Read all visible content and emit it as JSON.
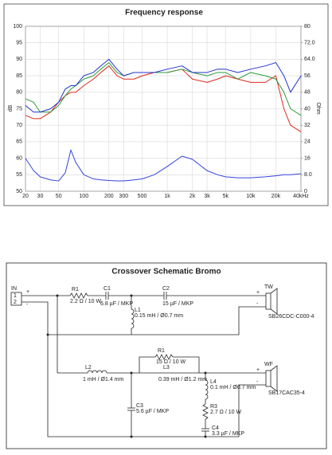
{
  "chart_data": {
    "type": "line",
    "title": "Frequency response",
    "ylabel": "dB",
    "y2label": "Ohm",
    "x": [
      20,
      25,
      30,
      40,
      50,
      60,
      70,
      80,
      100,
      130,
      160,
      200,
      250,
      300,
      400,
      500,
      700,
      1000,
      1500,
      2000,
      3000,
      4000,
      5000,
      7000,
      10000,
      15000,
      20000,
      25000,
      30000,
      40000
    ],
    "series": [
      {
        "name": "red",
        "color": "#e0281e",
        "values": [
          73,
          72,
          72,
          74,
          77,
          79,
          80,
          80,
          82,
          84,
          86,
          88,
          85,
          84,
          84,
          85,
          86,
          86,
          87,
          84,
          83,
          84,
          85,
          84,
          83,
          83,
          85,
          75,
          70,
          68
        ]
      },
      {
        "name": "green",
        "color": "#2e9a3a",
        "values": [
          78,
          77,
          74,
          74,
          76,
          79,
          81,
          82,
          84,
          85,
          87,
          89,
          86,
          85,
          86,
          86,
          86,
          86,
          87,
          86,
          85,
          86,
          86,
          84,
          86,
          85,
          84,
          80,
          75,
          73
        ]
      },
      {
        "name": "blue",
        "color": "#2233cc",
        "values": [
          76,
          74,
          74,
          75,
          77,
          81,
          82,
          82,
          85,
          86,
          88,
          90,
          87,
          85,
          86,
          86,
          86,
          87,
          88,
          86,
          86,
          87,
          87,
          86,
          87,
          88,
          89,
          85,
          80,
          85
        ]
      },
      {
        "name": "impedance",
        "color": "#3344dd",
        "axis": "y2",
        "values": [
          16,
          10,
          7,
          5.5,
          5,
          9,
          20,
          14,
          8,
          6,
          5.5,
          5.2,
          5,
          5,
          5.5,
          6,
          8,
          12,
          17,
          15.5,
          10,
          8,
          7,
          6.5,
          6.5,
          7,
          7.5,
          8,
          8,
          8.5
        ]
      }
    ],
    "xlim": [
      20,
      40000
    ],
    "log_x": true,
    "xticks": [
      20,
      30,
      50,
      100,
      200,
      300,
      500,
      {
        "value": 1000,
        "label": "1k"
      },
      {
        "value": 2000,
        "label": "2k"
      },
      {
        "value": 3000,
        "label": "3k"
      },
      {
        "value": 5000,
        "label": "5k"
      },
      {
        "value": 10000,
        "label": "10k"
      },
      {
        "value": 20000,
        "label": "20k"
      },
      {
        "value": 40000,
        "label": "40kHz"
      }
    ],
    "ylim": [
      50,
      100
    ],
    "yticks": [
      50,
      55,
      60,
      65,
      70,
      75,
      80,
      85,
      90,
      95,
      100
    ],
    "y2lim": [
      0,
      80
    ],
    "y2ticks": [
      0,
      {
        "value": 8,
        "label": "8.0"
      },
      16,
      24,
      32,
      40,
      48,
      56,
      {
        "value": 64,
        "label": "64.0"
      },
      {
        "value": 72,
        "label": "72.0"
      },
      80
    ],
    "grid": true
  },
  "schematic": {
    "title": "Crossover Schematic Bromo",
    "input": "IN",
    "pins": [
      "1",
      "2"
    ],
    "plus": "+",
    "minus": "-",
    "components": [
      {
        "name": "R1",
        "value": "2.2 Ω / 10 W"
      },
      {
        "name": "C1",
        "value": "6.8 µF / MKP"
      },
      {
        "name": "C2",
        "value": "15 µF / MKP"
      },
      {
        "name": "L1",
        "value": "0.15 mH / Ø0.7 mm"
      },
      {
        "name": "L2",
        "value": "1 mH / Ø1.4 mm"
      },
      {
        "name": "R1",
        "value": "15 Ω / 10 W"
      },
      {
        "name": "L3",
        "value": "0.39 mH / Ø1.2 mm"
      },
      {
        "name": "L4",
        "value": "0.1 mH / Ø0.7 mm"
      },
      {
        "name": "R3",
        "value": "2.7 Ω / 10 W"
      },
      {
        "name": "C3",
        "value": "5.6 µF / MKP"
      },
      {
        "name": "C4",
        "value": "3.3 µF / MKP"
      }
    ],
    "drivers": [
      {
        "name": "TW",
        "model": "SB26CDC-C000-4"
      },
      {
        "name": "WF",
        "model": "SB17CAC35-4"
      }
    ]
  }
}
